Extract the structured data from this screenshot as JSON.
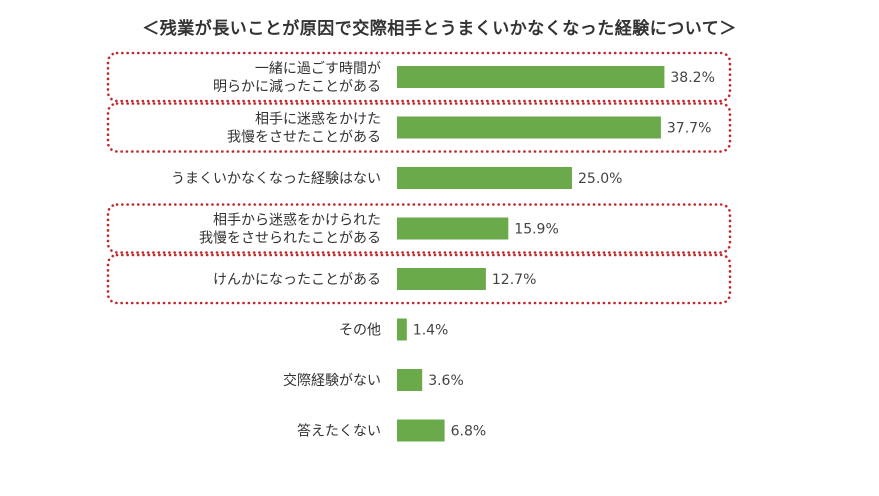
{
  "chart_data": {
    "type": "bar",
    "orientation": "horizontal",
    "title": "＜残業が長いことが原因で交際相手とうまくいかなくなった経験について＞",
    "categories": [
      [
        "一緒に過ごす時間が",
        "明らかに減ったことがある"
      ],
      [
        "相手に迷惑をかけた",
        "我慢をさせたことがある"
      ],
      [
        "うまくいかなくなった経験はない"
      ],
      [
        "相手から迷惑をかけられた",
        "我慢をさせられたことがある"
      ],
      [
        "けんかになったことがある"
      ],
      [
        "その他"
      ],
      [
        "交際経験がない"
      ],
      [
        "答えたくない"
      ]
    ],
    "values": [
      38.2,
      37.7,
      25.0,
      15.9,
      12.7,
      1.4,
      3.6,
      6.8
    ],
    "value_labels": [
      "38.2%",
      "37.7%",
      "25.0%",
      "15.9%",
      "12.7%",
      "1.4%",
      "3.6%",
      "6.8%"
    ],
    "highlighted": [
      true,
      true,
      false,
      true,
      true,
      false,
      false,
      false
    ],
    "bar_color": "#6aaa4a",
    "highlight_border_color": "#c0282d",
    "xlim": [
      0,
      40
    ],
    "grid": false,
    "legend": "none"
  }
}
